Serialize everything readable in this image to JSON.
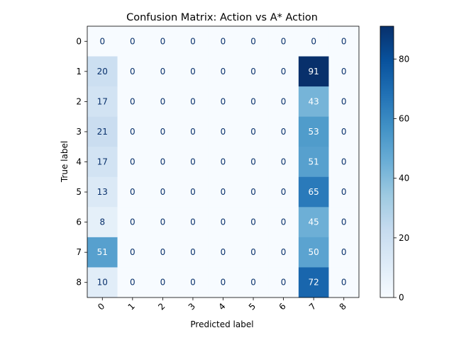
{
  "chart_data": {
    "type": "heatmap",
    "title": "Confusion Matrix: Action vs A* Action",
    "xlabel": "Predicted label",
    "ylabel": "True label",
    "x_categories": [
      "0",
      "1",
      "2",
      "3",
      "4",
      "5",
      "6",
      "7",
      "8"
    ],
    "y_categories": [
      "0",
      "1",
      "2",
      "3",
      "4",
      "5",
      "6",
      "7",
      "8"
    ],
    "values": [
      [
        0,
        0,
        0,
        0,
        0,
        0,
        0,
        0,
        0
      ],
      [
        20,
        0,
        0,
        0,
        0,
        0,
        0,
        91,
        0
      ],
      [
        17,
        0,
        0,
        0,
        0,
        0,
        0,
        43,
        0
      ],
      [
        21,
        0,
        0,
        0,
        0,
        0,
        0,
        53,
        0
      ],
      [
        17,
        0,
        0,
        0,
        0,
        0,
        0,
        51,
        0
      ],
      [
        13,
        0,
        0,
        0,
        0,
        0,
        0,
        65,
        0
      ],
      [
        8,
        0,
        0,
        0,
        0,
        0,
        0,
        45,
        0
      ],
      [
        51,
        0,
        0,
        0,
        0,
        0,
        0,
        50,
        0
      ],
      [
        10,
        0,
        0,
        0,
        0,
        0,
        0,
        72,
        0
      ]
    ],
    "colormap": "Blues",
    "colorbar": {
      "range": [
        0,
        91
      ],
      "ticks": [
        0,
        20,
        40,
        60,
        80
      ]
    },
    "grid": false
  }
}
